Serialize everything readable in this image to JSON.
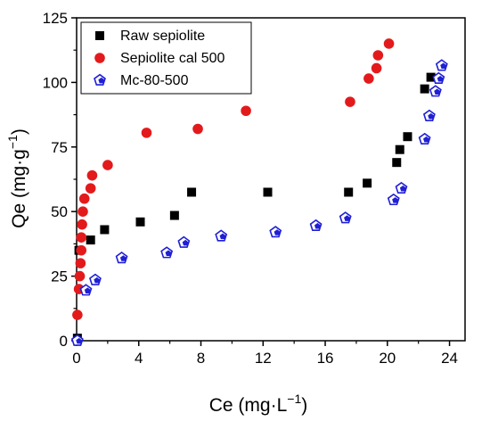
{
  "chart_data": {
    "type": "scatter",
    "xlabel": "Ce (mg·L",
    "xlabel_sup": "−1",
    "xlabel_end": ")",
    "ylabel": "Qe (mg·g",
    "ylabel_sup": "−1",
    "ylabel_end": ")",
    "xlim": [
      0,
      25
    ],
    "ylim": [
      0,
      125
    ],
    "xticks": [
      0,
      4,
      8,
      12,
      16,
      20,
      24
    ],
    "yticks": [
      0,
      25,
      50,
      75,
      100,
      125
    ],
    "grid": false,
    "legend_position": "top-left",
    "series": [
      {
        "name": "Raw sepiolite",
        "marker": "square",
        "color": "#000000",
        "x": [
          0.05,
          0.15,
          0.9,
          1.8,
          4.1,
          6.3,
          7.4,
          12.3,
          17.5,
          18.7,
          20.6,
          20.8,
          21.3,
          22.4,
          22.8
        ],
        "y": [
          1,
          35,
          39,
          43,
          46,
          48.5,
          57.5,
          57.5,
          57.5,
          61,
          69,
          74,
          79,
          97.5,
          102
        ]
      },
      {
        "name": "Sepiolite cal 500",
        "marker": "circle",
        "color": "#e31a1c",
        "x": [
          0.05,
          0.15,
          0.2,
          0.25,
          0.3,
          0.3,
          0.35,
          0.4,
          0.5,
          0.9,
          1.0,
          2.0,
          4.5,
          7.8,
          10.9,
          17.6,
          18.8,
          19.3,
          19.4,
          20.1
        ],
        "y": [
          10,
          20,
          25,
          30,
          35,
          40,
          45,
          50,
          55,
          59,
          64,
          68,
          80.5,
          82,
          89,
          92.5,
          101.5,
          105.5,
          110.5,
          115
        ]
      },
      {
        "name": "Mc-80-500",
        "marker": "pentagon",
        "color": "#1f1fd6",
        "x": [
          0.05,
          0.6,
          1.2,
          2.9,
          5.8,
          6.9,
          9.3,
          12.8,
          15.4,
          17.3,
          20.4,
          20.9,
          22.4,
          22.7,
          23.1,
          23.3,
          23.5
        ],
        "y": [
          0,
          19.5,
          23.5,
          32,
          34,
          38,
          40.5,
          42,
          44.5,
          47.5,
          54.5,
          59,
          78,
          87,
          96.5,
          101.5,
          106.5
        ]
      }
    ]
  }
}
